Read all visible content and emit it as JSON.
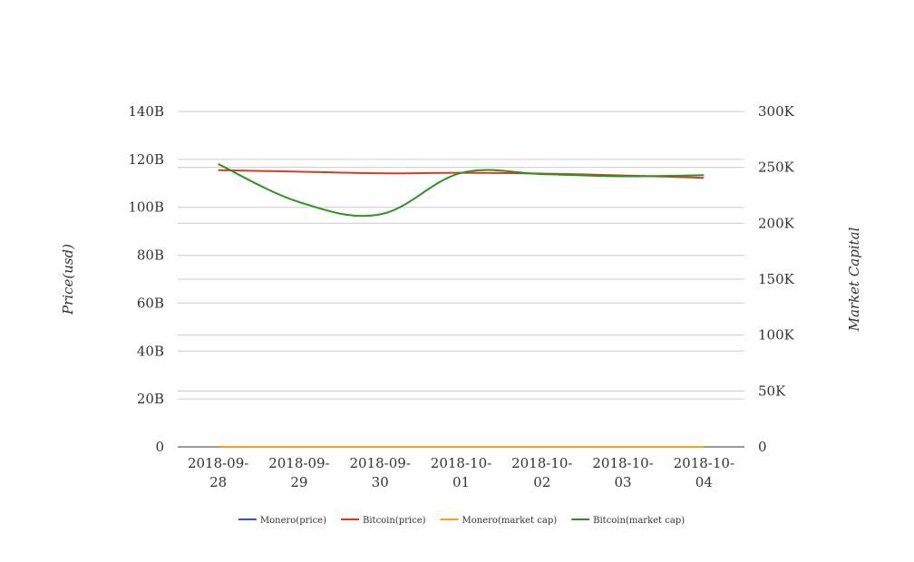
{
  "chart_data": {
    "type": "line",
    "title": "",
    "x": [
      "2018-09-28",
      "2018-09-29",
      "2018-09-30",
      "2018-10-01",
      "2018-10-02",
      "2018-10-03",
      "2018-10-04"
    ],
    "x_tick_labels": [
      [
        "2018-09-",
        "28"
      ],
      [
        "2018-09-",
        "29"
      ],
      [
        "2018-09-",
        "30"
      ],
      [
        "2018-10-",
        "01"
      ],
      [
        "2018-10-",
        "02"
      ],
      [
        "2018-10-",
        "03"
      ],
      [
        "2018-10-",
        "04"
      ]
    ],
    "ylabel_left": "Price(usd)",
    "ylabel_right": "Market Capital",
    "ylim_left": [
      0,
      140000000000
    ],
    "yticks_left": [
      0,
      20000000000,
      40000000000,
      60000000000,
      80000000000,
      100000000000,
      120000000000,
      140000000000
    ],
    "ytick_labels_left": [
      "0",
      "20B",
      "40B",
      "60B",
      "80B",
      "100B",
      "120B",
      "140B"
    ],
    "ylim_right": [
      0,
      300000
    ],
    "yticks_right": [
      0,
      50000,
      100000,
      150000,
      200000,
      250000,
      300000
    ],
    "ytick_labels_right": [
      "0",
      "50K",
      "100K",
      "150K",
      "200K",
      "250K",
      "300K"
    ],
    "grid": true,
    "legend_position": "bottom",
    "series": [
      {
        "name": "Monero(price)",
        "axis": "left",
        "color": "#3355bb",
        "values": [
          0,
          0,
          0,
          0,
          0,
          0,
          0
        ]
      },
      {
        "name": "Bitcoin(price)",
        "axis": "left",
        "color": "#d63c1f",
        "values": [
          115500000000,
          114900000000,
          114200000000,
          114400000000,
          114100000000,
          113300000000,
          112300000000
        ]
      },
      {
        "name": "Monero(market cap)",
        "axis": "left",
        "color": "#f2a31b",
        "values": [
          0,
          0,
          0,
          0,
          0,
          0,
          0
        ]
      },
      {
        "name": "Bitcoin(market cap)",
        "axis": "right",
        "color": "#2b9420",
        "values": [
          253000,
          219000,
          208000,
          245000,
          244000,
          242000,
          243000
        ]
      }
    ]
  }
}
